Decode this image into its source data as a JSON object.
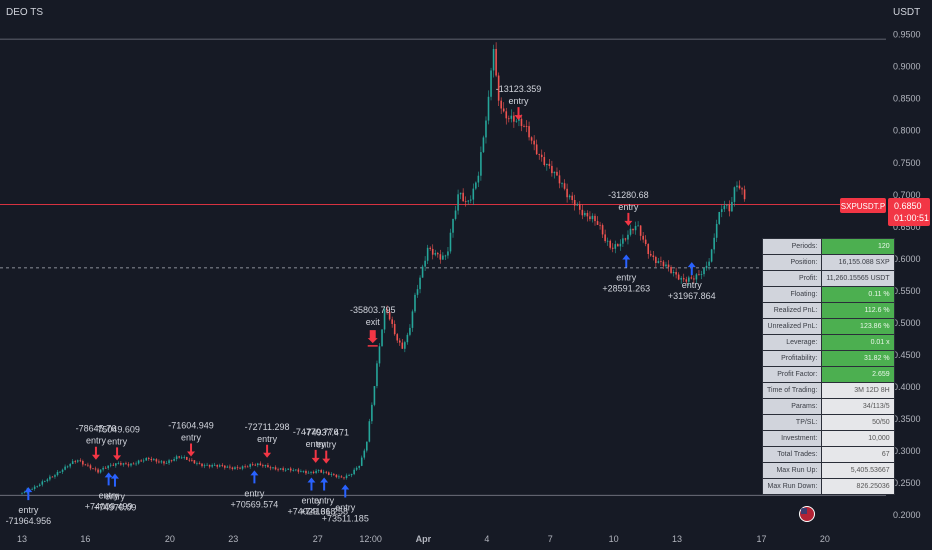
{
  "header": {
    "title": "DEO TS",
    "currency": "USDT"
  },
  "colors": {
    "background": "#161a25",
    "up": "#26a69a",
    "down": "#ef5350",
    "buy_arrow": "#2962ff",
    "sell_arrow": "#f23645",
    "price_badge": "#f23645",
    "label_text": "#d1d4dc",
    "axis_text": "#b2b5be",
    "grid": "#1e222d"
  },
  "price_tag": {
    "symbol": "SXPUSDT.P",
    "price": "0.6850",
    "countdown": "01:00:51",
    "value": 0.685
  },
  "chart_data": {
    "type": "candlestick",
    "ylim": [
      0.18,
      0.965
    ],
    "y_ticks": [
      "0.9500",
      "0.9000",
      "0.8500",
      "0.8000",
      "0.7500",
      "0.7000",
      "0.6500",
      "0.6000",
      "0.5500",
      "0.5000",
      "0.4500",
      "0.4000",
      "0.3500",
      "0.3000",
      "0.2500",
      "0.2000"
    ],
    "y_tick_values": [
      0.95,
      0.9,
      0.85,
      0.8,
      0.75,
      0.7,
      0.65,
      0.6,
      0.55,
      0.5,
      0.45,
      0.4,
      0.35,
      0.3,
      0.25,
      0.2
    ],
    "x_ticks": [
      "13",
      "16",
      "20",
      "23",
      "27",
      "12:00",
      "Apr",
      "4",
      "7",
      "10",
      "13",
      "17",
      "20"
    ],
    "x_tick_bold": [
      false,
      false,
      false,
      false,
      false,
      false,
      true,
      false,
      false,
      false,
      false,
      false,
      false
    ],
    "x_tick_day_index": [
      0,
      3,
      7,
      10,
      14,
      16.5,
      19,
      22,
      25,
      28,
      31,
      35,
      38
    ],
    "day_range": [
      0,
      39
    ],
    "reference_lines": [
      {
        "value": 0.943,
        "style": "solid",
        "color": "#787b86"
      },
      {
        "value": 0.685,
        "style": "solid",
        "color": "#f23645"
      },
      {
        "value": 0.586,
        "style": "dashed",
        "color": "#b2b5be"
      },
      {
        "value": 0.231,
        "style": "solid",
        "color": "#787b86"
      }
    ],
    "price_path": [
      [
        0,
        0.235
      ],
      [
        0.6,
        0.242
      ],
      [
        1.2,
        0.258
      ],
      [
        2,
        0.272
      ],
      [
        2.6,
        0.286
      ],
      [
        3.2,
        0.277
      ],
      [
        3.6,
        0.268
      ],
      [
        4,
        0.274
      ],
      [
        4.6,
        0.282
      ],
      [
        5.2,
        0.28
      ],
      [
        6,
        0.287
      ],
      [
        6.8,
        0.283
      ],
      [
        7.4,
        0.29
      ],
      [
        8,
        0.285
      ],
      [
        8.6,
        0.279
      ],
      [
        9.2,
        0.276
      ],
      [
        9.8,
        0.274
      ],
      [
        10.4,
        0.276
      ],
      [
        11,
        0.278
      ],
      [
        11.6,
        0.276
      ],
      [
        12.2,
        0.273
      ],
      [
        13,
        0.268
      ],
      [
        13.6,
        0.267
      ],
      [
        14,
        0.271
      ],
      [
        14.6,
        0.262
      ],
      [
        15.1,
        0.258
      ],
      [
        15.5,
        0.264
      ],
      [
        16,
        0.28
      ],
      [
        16.3,
        0.31
      ],
      [
        16.6,
        0.38
      ],
      [
        16.9,
        0.46
      ],
      [
        17.2,
        0.53
      ],
      [
        17.5,
        0.5
      ],
      [
        17.8,
        0.47
      ],
      [
        18,
        0.46
      ],
      [
        18.3,
        0.48
      ],
      [
        18.6,
        0.54
      ],
      [
        18.9,
        0.58
      ],
      [
        19.2,
        0.62
      ],
      [
        19.5,
        0.61
      ],
      [
        19.8,
        0.6
      ],
      [
        20.1,
        0.6
      ],
      [
        20.4,
        0.66
      ],
      [
        20.7,
        0.71
      ],
      [
        21,
        0.69
      ],
      [
        21.3,
        0.7
      ],
      [
        21.6,
        0.73
      ],
      [
        21.9,
        0.8
      ],
      [
        22.1,
        0.85
      ],
      [
        22.3,
        0.94
      ],
      [
        22.5,
        0.86
      ],
      [
        22.8,
        0.83
      ],
      [
        23.1,
        0.82
      ],
      [
        23.5,
        0.81
      ],
      [
        23.9,
        0.8
      ],
      [
        24.2,
        0.78
      ],
      [
        24.6,
        0.76
      ],
      [
        25,
        0.74
      ],
      [
        25.4,
        0.72
      ],
      [
        25.8,
        0.7
      ],
      [
        26.2,
        0.69
      ],
      [
        26.6,
        0.67
      ],
      [
        27,
        0.66
      ],
      [
        27.3,
        0.65
      ],
      [
        27.6,
        0.63
      ],
      [
        27.9,
        0.62
      ],
      [
        28.2,
        0.625
      ],
      [
        28.5,
        0.63
      ],
      [
        28.8,
        0.64
      ],
      [
        29.1,
        0.65
      ],
      [
        29.4,
        0.63
      ],
      [
        29.7,
        0.61
      ],
      [
        30,
        0.6
      ],
      [
        30.4,
        0.59
      ],
      [
        30.8,
        0.575
      ],
      [
        31.2,
        0.568
      ],
      [
        31.6,
        0.572
      ],
      [
        32,
        0.575
      ],
      [
        32.3,
        0.58
      ],
      [
        32.6,
        0.6
      ],
      [
        32.9,
        0.66
      ],
      [
        33.2,
        0.69
      ],
      [
        33.5,
        0.68
      ],
      [
        33.8,
        0.72
      ],
      [
        34.1,
        0.7
      ],
      [
        34.3,
        0.685
      ]
    ],
    "signals": [
      {
        "type": "entry",
        "side": "long",
        "day": 0.3,
        "price": 0.247,
        "label": "entry",
        "value": "-71964.956"
      },
      {
        "type": "entry",
        "side": "short",
        "day": 3.5,
        "price": 0.285,
        "label": "entry",
        "value": "-78645.76"
      },
      {
        "type": "entry",
        "side": "short",
        "day": 4.5,
        "price": 0.284,
        "label": "entry",
        "value": "-75049.609"
      },
      {
        "type": "entry",
        "side": "long",
        "day": 4.1,
        "price": 0.27,
        "label": "entry",
        "value": "+74009.499"
      },
      {
        "type": "entry",
        "side": "long",
        "day": 4.4,
        "price": 0.268,
        "label": "entry",
        "value": "+74970.09"
      },
      {
        "type": "entry",
        "side": "short",
        "day": 8,
        "price": 0.29,
        "label": "entry",
        "value": "-71604.949"
      },
      {
        "type": "entry",
        "side": "long",
        "day": 11,
        "price": 0.273,
        "label": "entry",
        "value": "+70569.574"
      },
      {
        "type": "entry",
        "side": "short",
        "day": 11.6,
        "price": 0.288,
        "label": "entry",
        "value": "-72711.298"
      },
      {
        "type": "entry",
        "side": "short",
        "day": 13.9,
        "price": 0.28,
        "label": "entry",
        "value": "-74770.776"
      },
      {
        "type": "entry",
        "side": "short",
        "day": 14.4,
        "price": 0.279,
        "label": "entry",
        "value": "-74937.471"
      },
      {
        "type": "entry",
        "side": "long",
        "day": 13.7,
        "price": 0.262,
        "label": "entry",
        "value": "+74029.618"
      },
      {
        "type": "entry",
        "side": "long",
        "day": 14.3,
        "price": 0.262,
        "label": "entry",
        "value": "+74136.258"
      },
      {
        "type": "entry",
        "side": "long",
        "day": 15.3,
        "price": 0.251,
        "label": "entry",
        "value": "+73511.185"
      },
      {
        "type": "exit",
        "side": "short",
        "day": 16.6,
        "price": 0.47,
        "label": "exit",
        "value": "-35803.795"
      },
      {
        "type": "entry",
        "side": "short",
        "day": 23.5,
        "price": 0.815,
        "label": "entry",
        "value": "-13123.359"
      },
      {
        "type": "entry",
        "side": "short",
        "day": 28.7,
        "price": 0.65,
        "label": "entry",
        "value": "-31280.68"
      },
      {
        "type": "entry",
        "side": "long",
        "day": 28.6,
        "price": 0.61,
        "label": "entry",
        "value": "+28591.263"
      },
      {
        "type": "entry",
        "side": "long",
        "day": 31.7,
        "price": 0.598,
        "label": "entry",
        "value": "+31967.864"
      }
    ]
  },
  "stats": [
    {
      "key": "Periods:",
      "value": "120",
      "style": "g"
    },
    {
      "key": "Position:",
      "value": "16,155.088 SXP",
      "style": ""
    },
    {
      "key": "Profit:",
      "value": "11,260.15565 USDT",
      "style": ""
    },
    {
      "key": "Floating:",
      "value": "0.11 %",
      "style": "g"
    },
    {
      "key": "Realized PnL:",
      "value": "112.6 %",
      "style": "g"
    },
    {
      "key": "Unrealized PnL:",
      "value": "123.86 %",
      "style": "g"
    },
    {
      "key": "Leverage:",
      "value": "0.01 x",
      "style": "g"
    },
    {
      "key": "Profitability:",
      "value": "31.82 %",
      "style": "g"
    },
    {
      "key": "Profit Factor:",
      "value": "2.659",
      "style": "g"
    },
    {
      "key": "Time of Trading:",
      "value": "3M 12D 8H",
      "style": "w"
    },
    {
      "key": "Params:",
      "value": "34/113/5",
      "style": "w"
    },
    {
      "key": "TP/SL:",
      "value": "50/50",
      "style": "w"
    },
    {
      "key": "Investment:",
      "value": "10,000",
      "style": "w"
    },
    {
      "key": "Total Trades:",
      "value": "67",
      "style": "w"
    },
    {
      "key": "Max Run Up:",
      "value": "5,405.53667",
      "style": "w"
    },
    {
      "key": "Max Run Down:",
      "value": "826.25036",
      "style": "w"
    }
  ]
}
